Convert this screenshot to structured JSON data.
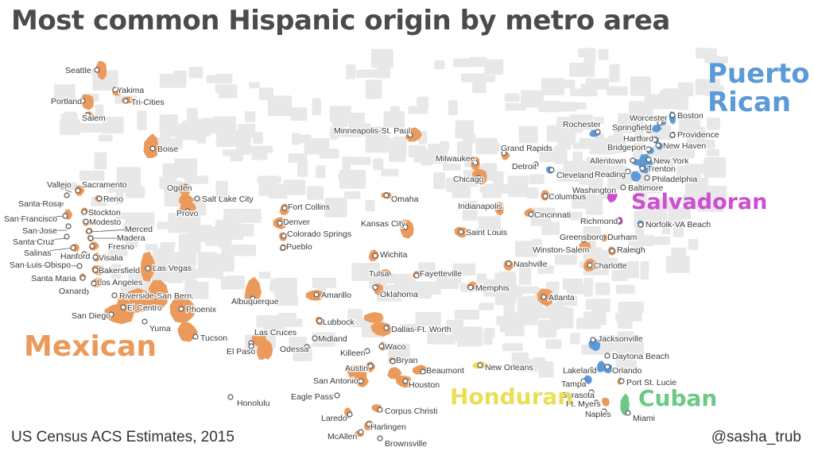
{
  "title": "Most common Hispanic origin by metro area",
  "source": "US Census ACS Estimates, 2015",
  "credit": "@sasha_trub",
  "colors": {
    "Mexican": "#ec9a5b",
    "Puerto Rican": "#5b9ad9",
    "Salvadoran": "#cd4fd1",
    "Honduran": "#e9df55",
    "Cuban": "#6cc985",
    "background_counties": "#e8e8e8"
  },
  "legend": [
    {
      "origin": "Mexican",
      "label": "Mexican"
    },
    {
      "origin": "Puerto Rican",
      "label": "Puerto\nRican"
    },
    {
      "origin": "Salvadoran",
      "label": "Salvadoran"
    },
    {
      "origin": "Honduran",
      "label": "Honduran"
    },
    {
      "origin": "Cuban",
      "label": "Cuban"
    }
  ],
  "metros": [
    {
      "name": "Seattle",
      "origin": "Mexican"
    },
    {
      "name": "Yakima",
      "origin": "Mexican"
    },
    {
      "name": "Tri-Cities",
      "origin": "Mexican"
    },
    {
      "name": "Portland",
      "origin": "Mexican"
    },
    {
      "name": "Salem",
      "origin": "Mexican"
    },
    {
      "name": "Boise",
      "origin": "Mexican"
    },
    {
      "name": "Ogden",
      "origin": "Mexican"
    },
    {
      "name": "Salt Lake City",
      "origin": "Mexican"
    },
    {
      "name": "Provo",
      "origin": "Mexican"
    },
    {
      "name": "Vallejo",
      "origin": "Mexican"
    },
    {
      "name": "Sacramento",
      "origin": "Mexican"
    },
    {
      "name": "Santa Rosa",
      "origin": "Mexican"
    },
    {
      "name": "Reno",
      "origin": "Mexican"
    },
    {
      "name": "San Francisco",
      "origin": "Mexican"
    },
    {
      "name": "Stockton",
      "origin": "Mexican"
    },
    {
      "name": "San Jose",
      "origin": "Mexican"
    },
    {
      "name": "Modesto",
      "origin": "Mexican"
    },
    {
      "name": "Merced",
      "origin": "Mexican"
    },
    {
      "name": "Santa Cruz",
      "origin": "Mexican"
    },
    {
      "name": "Madera",
      "origin": "Mexican"
    },
    {
      "name": "Fresno",
      "origin": "Mexican"
    },
    {
      "name": "Salinas",
      "origin": "Mexican"
    },
    {
      "name": "Hanford",
      "origin": "Mexican"
    },
    {
      "name": "Visalia",
      "origin": "Mexican"
    },
    {
      "name": "San Luis Obispo",
      "origin": "Mexican"
    },
    {
      "name": "Bakersfield",
      "origin": "Mexican"
    },
    {
      "name": "Santa Maria",
      "origin": "Mexican"
    },
    {
      "name": "Los Angeles",
      "origin": "Mexican"
    },
    {
      "name": "Oxnard",
      "origin": "Mexican"
    },
    {
      "name": "Las Vegas",
      "origin": "Mexican"
    },
    {
      "name": "Riverside-San Bern.",
      "origin": "Mexican"
    },
    {
      "name": "El Centro",
      "origin": "Mexican"
    },
    {
      "name": "Phoenix",
      "origin": "Mexican"
    },
    {
      "name": "San Diego",
      "origin": "Mexican"
    },
    {
      "name": "Yuma",
      "origin": "Mexican"
    },
    {
      "name": "Tucson",
      "origin": "Mexican"
    },
    {
      "name": "Albuquerque",
      "origin": "Mexican"
    },
    {
      "name": "Las Cruces",
      "origin": "Mexican"
    },
    {
      "name": "El Paso",
      "origin": "Mexican"
    },
    {
      "name": "Fort Collins",
      "origin": "Mexican"
    },
    {
      "name": "Denver",
      "origin": "Mexican"
    },
    {
      "name": "Colorado Springs",
      "origin": "Mexican"
    },
    {
      "name": "Pueblo",
      "origin": "Mexican"
    },
    {
      "name": "Amarillo",
      "origin": "Mexican"
    },
    {
      "name": "Lubbock",
      "origin": "Mexican"
    },
    {
      "name": "Midland",
      "origin": "Mexican"
    },
    {
      "name": "Odessa",
      "origin": "Mexican"
    },
    {
      "name": "Dallas-Ft. Worth",
      "origin": "Mexican"
    },
    {
      "name": "Waco",
      "origin": "Mexican"
    },
    {
      "name": "Killeen",
      "origin": "Mexican"
    },
    {
      "name": "Bryan",
      "origin": "Mexican"
    },
    {
      "name": "Austin",
      "origin": "Mexican"
    },
    {
      "name": "Beaumont",
      "origin": "Mexican"
    },
    {
      "name": "Houston",
      "origin": "Mexican"
    },
    {
      "name": "San Antonio",
      "origin": "Mexican"
    },
    {
      "name": "Eagle Pass",
      "origin": "Mexican"
    },
    {
      "name": "Corpus Christi",
      "origin": "Mexican"
    },
    {
      "name": "Laredo",
      "origin": "Mexican"
    },
    {
      "name": "Harlingen",
      "origin": "Mexican"
    },
    {
      "name": "McAllen",
      "origin": "Mexican"
    },
    {
      "name": "Brownsville",
      "origin": "Mexican"
    },
    {
      "name": "Minneapolis-St. Paul",
      "origin": "Mexican"
    },
    {
      "name": "Omaha",
      "origin": "Mexican"
    },
    {
      "name": "Kansas City",
      "origin": "Mexican"
    },
    {
      "name": "Wichita",
      "origin": "Mexican"
    },
    {
      "name": "Tulsa",
      "origin": "Mexican"
    },
    {
      "name": "Oklahoma",
      "origin": "Mexican"
    },
    {
      "name": "Fayetteville",
      "origin": "Mexican"
    },
    {
      "name": "Milwaukee",
      "origin": "Mexican"
    },
    {
      "name": "Chicago",
      "origin": "Mexican"
    },
    {
      "name": "Grand Rapids",
      "origin": "Mexican"
    },
    {
      "name": "Detroit",
      "origin": "Mexican"
    },
    {
      "name": "Indianapolis",
      "origin": "Mexican"
    },
    {
      "name": "Columbus",
      "origin": "Mexican"
    },
    {
      "name": "Cincinnati",
      "origin": "Mexican"
    },
    {
      "name": "Saint Louis",
      "origin": "Mexican"
    },
    {
      "name": "Nashville",
      "origin": "Mexican"
    },
    {
      "name": "Memphis",
      "origin": "Mexican"
    },
    {
      "name": "Atlanta",
      "origin": "Mexican"
    },
    {
      "name": "Greensboro",
      "origin": "Mexican"
    },
    {
      "name": "Durham",
      "origin": "Mexican"
    },
    {
      "name": "Winston-Salem",
      "origin": "Mexican"
    },
    {
      "name": "Raleigh",
      "origin": "Mexican"
    },
    {
      "name": "Charlotte",
      "origin": "Mexican"
    },
    {
      "name": "Richmond",
      "origin": "Salvadoran"
    },
    {
      "name": "Norfolk-VA Beach",
      "origin": "Puerto Rican"
    },
    {
      "name": "Washington",
      "origin": "Salvadoran"
    },
    {
      "name": "Baltimore",
      "origin": "Puerto Rican"
    },
    {
      "name": "Cleveland",
      "origin": "Puerto Rican"
    },
    {
      "name": "Rochester",
      "origin": "Puerto Rican"
    },
    {
      "name": "Worcester",
      "origin": "Puerto Rican"
    },
    {
      "name": "Boston",
      "origin": "Puerto Rican"
    },
    {
      "name": "Springfield",
      "origin": "Puerto Rican"
    },
    {
      "name": "Providence",
      "origin": "Puerto Rican"
    },
    {
      "name": "Hartford",
      "origin": "Puerto Rican"
    },
    {
      "name": "New Haven",
      "origin": "Puerto Rican"
    },
    {
      "name": "Bridgeport",
      "origin": "Puerto Rican"
    },
    {
      "name": "Allentown",
      "origin": "Puerto Rican"
    },
    {
      "name": "New York",
      "origin": "Puerto Rican"
    },
    {
      "name": "Reading",
      "origin": "Puerto Rican"
    },
    {
      "name": "Trenton",
      "origin": "Puerto Rican"
    },
    {
      "name": "Philadelphia",
      "origin": "Puerto Rican"
    },
    {
      "name": "New Orleans",
      "origin": "Honduran"
    },
    {
      "name": "Jacksonville",
      "origin": "Puerto Rican"
    },
    {
      "name": "Daytona Beach",
      "origin": "Puerto Rican"
    },
    {
      "name": "Lakeland",
      "origin": "Puerto Rican"
    },
    {
      "name": "Orlando",
      "origin": "Puerto Rican"
    },
    {
      "name": "Tampa",
      "origin": "Puerto Rican"
    },
    {
      "name": "Port St. Lucie",
      "origin": "Mexican"
    },
    {
      "name": "Sarasota",
      "origin": "Mexican"
    },
    {
      "name": "Ft. Myers",
      "origin": "Mexican"
    },
    {
      "name": "Naples",
      "origin": "Mexican"
    },
    {
      "name": "Miami",
      "origin": "Cuban"
    },
    {
      "name": "Honolulu",
      "origin": "Puerto Rican"
    }
  ]
}
